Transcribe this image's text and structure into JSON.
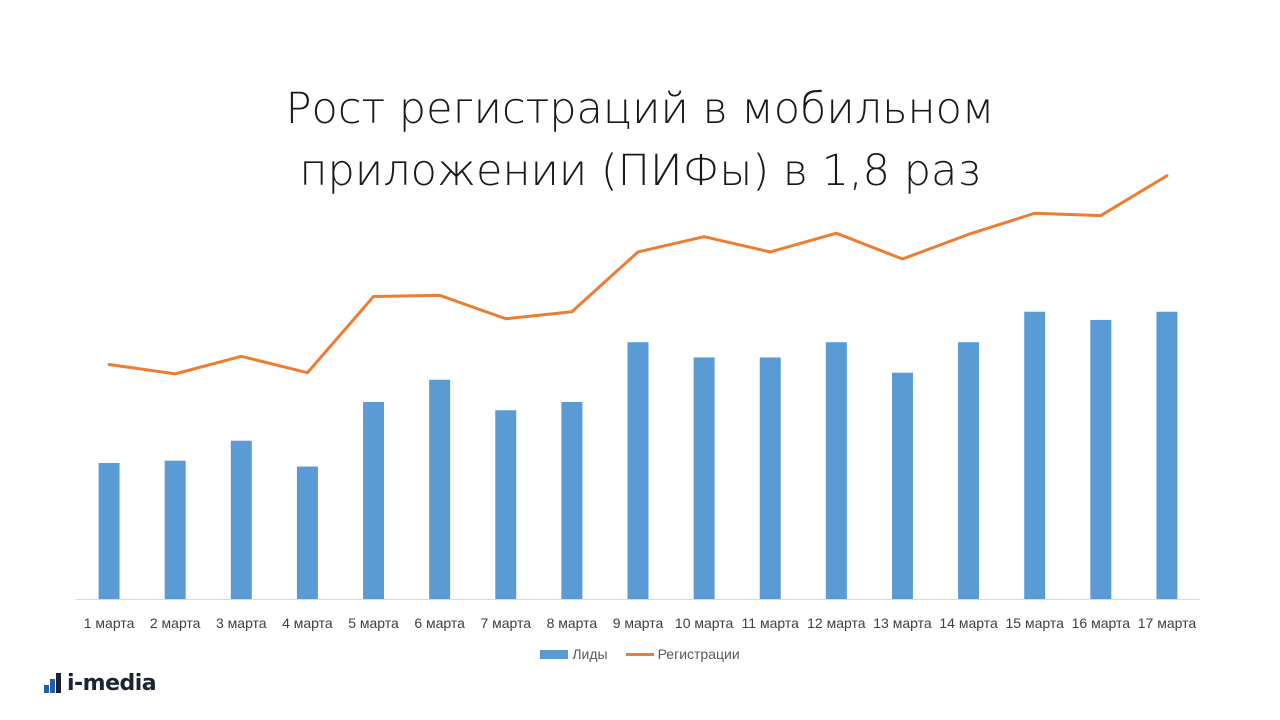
{
  "title": {
    "line1": "Рост регистраций в мобильном",
    "line2": "приложении (ПИФы) в 1,8 раз"
  },
  "logo": {
    "text": "i-media"
  },
  "chart_data": {
    "type": "bar",
    "title": "Рост регистраций в мобильном приложении (ПИФы) в 1,8 раз",
    "categories": [
      "1 марта",
      "2 марта",
      "3 марта",
      "4 марта",
      "5 марта",
      "6 марта",
      "7 марта",
      "8 марта",
      "9 марта",
      "10 марта",
      "11 марта",
      "12 марта",
      "13 марта",
      "14 марта",
      "15 марта",
      "16 марта",
      "17 марта"
    ],
    "series": [
      {
        "name": "Лиды",
        "type": "bar",
        "color": "#5b9bd5",
        "values": [
          116,
          118,
          135,
          113,
          168,
          187,
          161,
          168,
          219,
          206,
          206,
          219,
          193,
          219,
          245,
          238,
          245
        ]
      },
      {
        "name": "Регистрации",
        "type": "line",
        "color": "#ed7d31",
        "values": [
          200,
          192,
          207,
          193,
          258,
          259,
          239,
          245,
          296,
          309,
          296,
          312,
          290,
          311,
          329,
          327,
          361
        ]
      }
    ],
    "ylim": [
      0,
      400
    ],
    "grid": false,
    "y_axis_visible": false,
    "legend": "bottom"
  }
}
